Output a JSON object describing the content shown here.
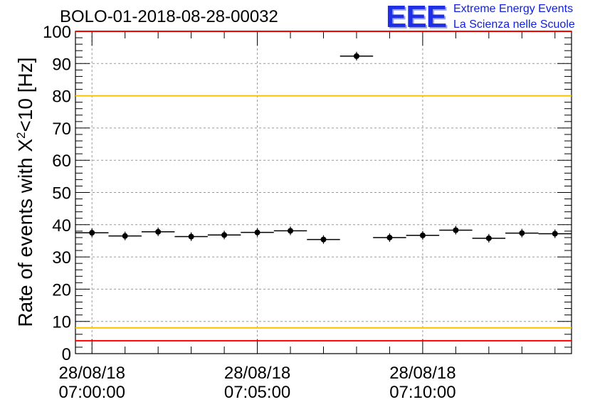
{
  "chart_data": {
    "type": "scatter",
    "title": "BOLO-01-2018-08-28-00032",
    "ylabel_prefix": "Rate of events with X",
    "ylabel_sup": "2",
    "ylabel_suffix": "<10 [Hz]",
    "xlabel": "",
    "ylim": [
      0,
      100
    ],
    "yticks": [
      0,
      10,
      20,
      30,
      40,
      50,
      60,
      70,
      80,
      90,
      100
    ],
    "xlim_minutes": [
      -0.5,
      14.5
    ],
    "xticks": [
      {
        "minute": 0,
        "label_date": "28/08/18",
        "label_time": "07:00:00"
      },
      {
        "minute": 5,
        "label_date": "28/08/18",
        "label_time": "07:05:00"
      },
      {
        "minute": 10,
        "label_date": "28/08/18",
        "label_time": "07:10:00"
      }
    ],
    "bin_width_minutes": 1,
    "points": [
      {
        "minute": 0,
        "y": 37.5
      },
      {
        "minute": 1,
        "y": 36.5
      },
      {
        "minute": 2,
        "y": 37.8
      },
      {
        "minute": 3,
        "y": 36.3
      },
      {
        "minute": 4,
        "y": 36.8
      },
      {
        "minute": 5,
        "y": 37.6
      },
      {
        "minute": 6,
        "y": 38.1
      },
      {
        "minute": 7,
        "y": 35.4
      },
      {
        "minute": 8,
        "y": 92.3
      },
      {
        "minute": 9,
        "y": 36.0
      },
      {
        "minute": 10,
        "y": 36.7
      },
      {
        "minute": 11,
        "y": 38.3
      },
      {
        "minute": 12,
        "y": 35.8
      },
      {
        "minute": 13,
        "y": 37.4
      },
      {
        "minute": 14,
        "y": 37.2
      }
    ],
    "reference_lines": [
      {
        "y": 100,
        "color": "#ff0000"
      },
      {
        "y": 4,
        "color": "#ff0000"
      },
      {
        "y": 80,
        "color": "#f5c400"
      },
      {
        "y": 8,
        "color": "#f5c400"
      }
    ],
    "grid": true,
    "marker_color": "#000000"
  },
  "logo": {
    "mark": "EEE",
    "line1": "Extreme Energy Events",
    "line2": "La Scienza nelle Scuole",
    "color": "#1020e0"
  }
}
